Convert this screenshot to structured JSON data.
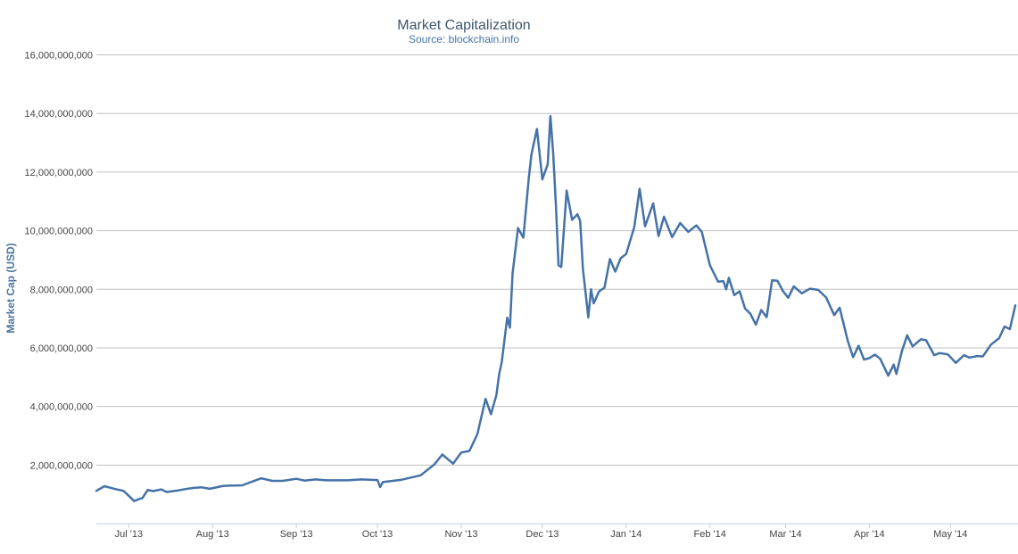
{
  "chart_data": {
    "type": "line",
    "title": "Market Capitalization",
    "subtitle": "Source: blockchain.info",
    "xlabel": "",
    "ylabel": "Market Cap (USD)",
    "ylim": [
      0,
      16000000000
    ],
    "xlim": [
      "2013-06-19",
      "2014-05-25"
    ],
    "yticks": [
      2000000000,
      4000000000,
      6000000000,
      8000000000,
      10000000000,
      12000000000,
      14000000000,
      16000000000
    ],
    "ytick_labels": [
      "2,000,000,000",
      "4,000,000,000",
      "6,000,000,000",
      "8,000,000,000",
      "10,000,000,000",
      "12,000,000,000",
      "14,000,000,000",
      "16,000,000,000"
    ],
    "xticks": [
      {
        "date": "2013-07-01",
        "label": "Jul '13"
      },
      {
        "date": "2013-08-01",
        "label": "Aug '13"
      },
      {
        "date": "2013-09-01",
        "label": "Sep '13"
      },
      {
        "date": "2013-10-01",
        "label": "Oct '13"
      },
      {
        "date": "2013-11-01",
        "label": "Nov '13"
      },
      {
        "date": "2013-12-01",
        "label": "Dec '13"
      },
      {
        "date": "2014-01-01",
        "label": "Jan '14"
      },
      {
        "date": "2014-02-01",
        "label": "Feb '14"
      },
      {
        "date": "2014-03-01",
        "label": "Mar '14"
      },
      {
        "date": "2014-04-01",
        "label": "Apr '14"
      },
      {
        "date": "2014-05-01",
        "label": "May '14"
      }
    ],
    "grid": true,
    "legend": "none",
    "line_color": "#4572a7",
    "series": [
      {
        "x": [
          "2013-06-19",
          "2013-06-22",
          "2013-06-26",
          "2013-06-29",
          "2013-07-01",
          "2013-07-03",
          "2013-07-05",
          "2013-07-06",
          "2013-07-08",
          "2013-07-10",
          "2013-07-13",
          "2013-07-15",
          "2013-07-19",
          "2013-07-22",
          "2013-07-25",
          "2013-07-28",
          "2013-07-31",
          "2013-08-05",
          "2013-08-12",
          "2013-08-19",
          "2013-08-23",
          "2013-08-27",
          "2013-09-01",
          "2013-09-04",
          "2013-09-08",
          "2013-09-12",
          "2013-09-20",
          "2013-09-25",
          "2013-10-01",
          "2013-10-02",
          "2013-10-03",
          "2013-10-10",
          "2013-10-17",
          "2013-10-22",
          "2013-10-25",
          "2013-10-29",
          "2013-11-01",
          "2013-11-04",
          "2013-11-07",
          "2013-11-10",
          "2013-11-12",
          "2013-11-14",
          "2013-11-15",
          "2013-11-16",
          "2013-11-18",
          "2013-11-19",
          "2013-11-20",
          "2013-11-22",
          "2013-11-24",
          "2013-11-26",
          "2013-11-27",
          "2013-11-29",
          "2013-12-01",
          "2013-12-03",
          "2013-12-04",
          "2013-12-05",
          "2013-12-06",
          "2013-12-07",
          "2013-12-08",
          "2013-12-10",
          "2013-12-12",
          "2013-12-14",
          "2013-12-15",
          "2013-12-16",
          "2013-12-18",
          "2013-12-19",
          "2013-12-20",
          "2013-12-22",
          "2013-12-24",
          "2013-12-26",
          "2013-12-28",
          "2013-12-30",
          "2014-01-01",
          "2014-01-04",
          "2014-01-06",
          "2014-01-08",
          "2014-01-11",
          "2014-01-13",
          "2014-01-15",
          "2014-01-18",
          "2014-01-21",
          "2014-01-24",
          "2014-01-27",
          "2014-01-29",
          "2014-02-01",
          "2014-02-04",
          "2014-02-06",
          "2014-02-07",
          "2014-02-08",
          "2014-02-10",
          "2014-02-12",
          "2014-02-14",
          "2014-02-16",
          "2014-02-18",
          "2014-02-20",
          "2014-02-22",
          "2014-02-24",
          "2014-02-26",
          "2014-02-28",
          "2014-03-02",
          "2014-03-04",
          "2014-03-07",
          "2014-03-10",
          "2014-03-13",
          "2014-03-16",
          "2014-03-19",
          "2014-03-21",
          "2014-03-24",
          "2014-03-26",
          "2014-03-28",
          "2014-03-30",
          "2014-04-01",
          "2014-04-03",
          "2014-04-05",
          "2014-04-08",
          "2014-04-10",
          "2014-04-11",
          "2014-04-13",
          "2014-04-15",
          "2014-04-17",
          "2014-04-20",
          "2014-04-22",
          "2014-04-25",
          "2014-04-27",
          "2014-04-30",
          "2014-05-03",
          "2014-05-06",
          "2014-05-08",
          "2014-05-11",
          "2014-05-13",
          "2014-05-16",
          "2014-05-19",
          "2014-05-21",
          "2014-05-23",
          "2014-05-25"
        ],
        "y": [
          1120000000,
          1280000000,
          1180000000,
          1120000000,
          950000000,
          770000000,
          850000000,
          870000000,
          1150000000,
          1110000000,
          1170000000,
          1080000000,
          1130000000,
          1180000000,
          1220000000,
          1240000000,
          1190000000,
          1290000000,
          1310000000,
          1550000000,
          1460000000,
          1460000000,
          1530000000,
          1470000000,
          1510000000,
          1480000000,
          1480000000,
          1510000000,
          1490000000,
          1250000000,
          1420000000,
          1500000000,
          1650000000,
          2020000000,
          2360000000,
          2050000000,
          2430000000,
          2480000000,
          3060000000,
          4260000000,
          3740000000,
          4390000000,
          5090000000,
          5520000000,
          7030000000,
          6690000000,
          8540000000,
          10090000000,
          9760000000,
          11800000000,
          12610000000,
          13470000000,
          11750000000,
          12270000000,
          13910000000,
          12650000000,
          10920000000,
          8820000000,
          8760000000,
          11370000000,
          10370000000,
          10560000000,
          10330000000,
          8710000000,
          7040000000,
          8000000000,
          7520000000,
          7930000000,
          8050000000,
          9030000000,
          8600000000,
          9060000000,
          9200000000,
          10120000000,
          11430000000,
          10150000000,
          10930000000,
          9820000000,
          10480000000,
          9780000000,
          10260000000,
          9960000000,
          10180000000,
          9960000000,
          8820000000,
          8260000000,
          8280000000,
          8000000000,
          8390000000,
          7800000000,
          7930000000,
          7340000000,
          7160000000,
          6790000000,
          7290000000,
          7050000000,
          8310000000,
          8290000000,
          7940000000,
          7710000000,
          8100000000,
          7860000000,
          8020000000,
          7980000000,
          7720000000,
          7120000000,
          7370000000,
          6240000000,
          5680000000,
          6070000000,
          5600000000,
          5650000000,
          5770000000,
          5630000000,
          5050000000,
          5430000000,
          5110000000,
          5880000000,
          6430000000,
          6050000000,
          6290000000,
          6260000000,
          5750000000,
          5820000000,
          5780000000,
          5490000000,
          5750000000,
          5670000000,
          5720000000,
          5710000000,
          6110000000,
          6330000000,
          6730000000,
          6640000000,
          7450000000
        ]
      }
    ]
  }
}
